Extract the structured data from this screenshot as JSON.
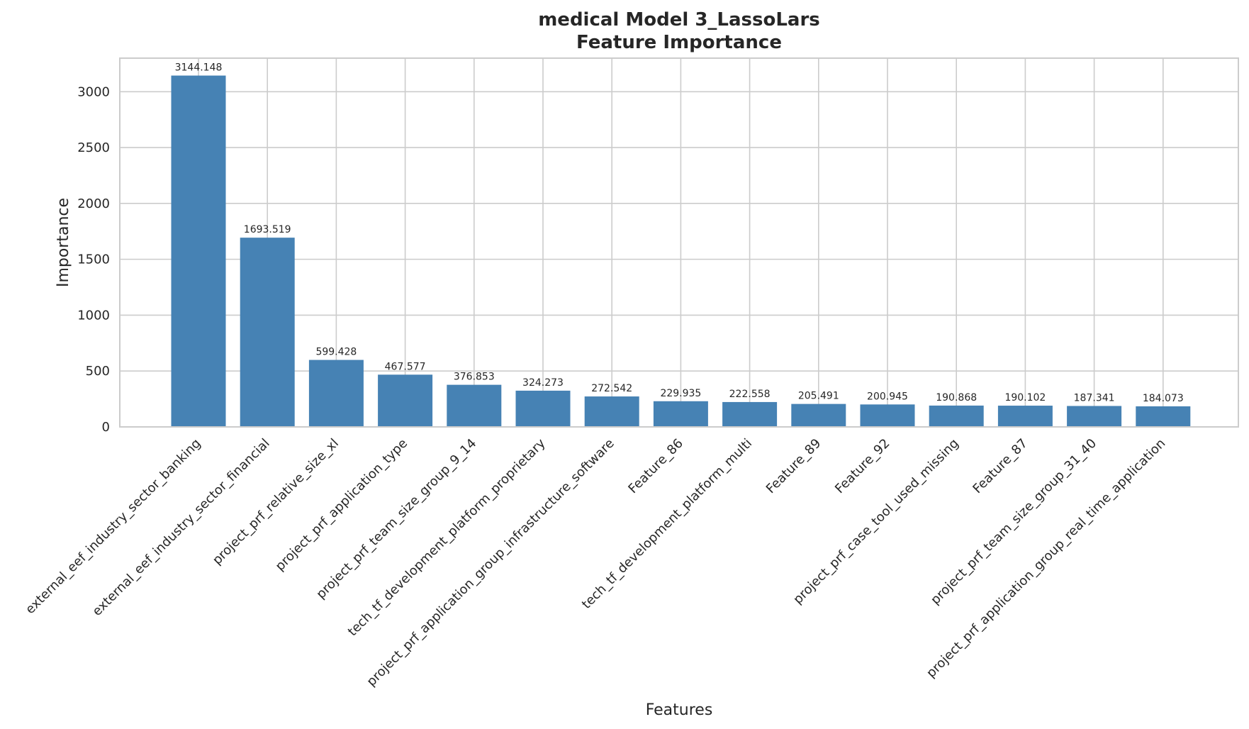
{
  "chart_data": {
    "type": "bar",
    "title": "medical Model 3_LassoLars",
    "subtitle": "Feature Importance",
    "xlabel": "Features",
    "ylabel": "Importance",
    "ylim": [
      0,
      3300
    ],
    "yticks": [
      0,
      500,
      1000,
      1500,
      2000,
      2500,
      3000
    ],
    "grid": true,
    "bar_color": "#4682b4",
    "categories": [
      "external_eef_industry_sector_banking",
      "external_eef_industry_sector_financial",
      "project_prf_relative_size_xl",
      "project_prf_application_type",
      "project_prf_team_size_group_9_14",
      "tech_tf_development_platform_proprietary",
      "project_prf_application_group_infrastructure_software",
      "Feature_86",
      "tech_tf_development_platform_multi",
      "Feature_89",
      "Feature_92",
      "project_prf_case_tool_used_missing",
      "Feature_87",
      "project_prf_team_size_group_31_40",
      "project_prf_application_group_real_time_application"
    ],
    "values": [
      3144.148,
      1693.519,
      599.428,
      467.577,
      376.853,
      324.273,
      272.542,
      229.935,
      222.558,
      205.491,
      200.945,
      190.868,
      190.102,
      187.341,
      184.073
    ],
    "value_labels": [
      "3144.148",
      "1693.519",
      "599.428",
      "467.577",
      "376.853",
      "324.273",
      "272.542",
      "229.935",
      "222.558",
      "205.491",
      "200.945",
      "190.868",
      "190.102",
      "187.341",
      "184.073"
    ]
  }
}
